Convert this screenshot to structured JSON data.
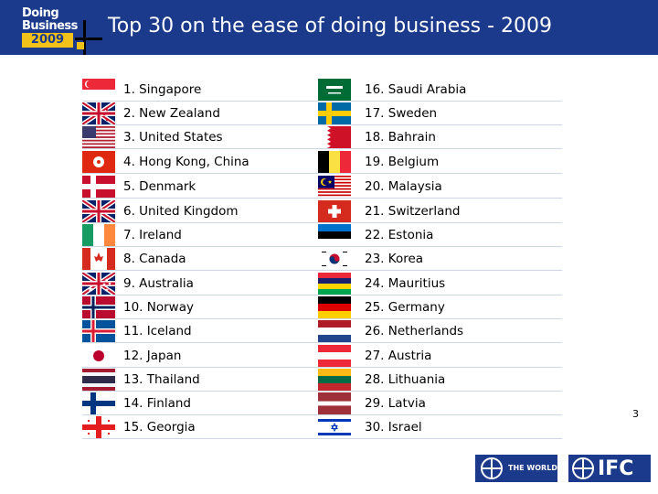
{
  "logo": {
    "line1": "Doing",
    "line2": "Business",
    "year": "2009"
  },
  "title": "Top 30 on the ease of doing business - 2009",
  "page_number": "3",
  "footer": {
    "world_bank_label": "THE WORLD BANK",
    "ifc_label": "IFC"
  },
  "rankings": [
    {
      "label": "1. Singapore",
      "flag": "singapore-flag"
    },
    {
      "label": "2. New Zealand",
      "flag": "new-zealand-flag"
    },
    {
      "label": "3. United States",
      "flag": "united-states-flag"
    },
    {
      "label": "4. Hong Kong, China",
      "flag": "hong-kong-flag"
    },
    {
      "label": "5. Denmark",
      "flag": "denmark-flag"
    },
    {
      "label": "6. United Kingdom",
      "flag": "united-kingdom-flag"
    },
    {
      "label": "7. Ireland",
      "flag": "ireland-flag"
    },
    {
      "label": "8. Canada",
      "flag": "canada-flag"
    },
    {
      "label": "9. Australia",
      "flag": "australia-flag"
    },
    {
      "label": "10. Norway",
      "flag": "norway-flag"
    },
    {
      "label": "11. Iceland",
      "flag": "iceland-flag"
    },
    {
      "label": "12. Japan",
      "flag": "japan-flag"
    },
    {
      "label": "13. Thailand",
      "flag": "thailand-flag"
    },
    {
      "label": "14. Finland",
      "flag": "finland-flag"
    },
    {
      "label": "15. Georgia",
      "flag": "georgia-flag"
    },
    {
      "label": "16. Saudi Arabia",
      "flag": "saudi-arabia-flag"
    },
    {
      "label": "17. Sweden",
      "flag": "sweden-flag"
    },
    {
      "label": "18. Bahrain",
      "flag": "bahrain-flag"
    },
    {
      "label": "19. Belgium",
      "flag": "belgium-flag"
    },
    {
      "label": "20. Malaysia",
      "flag": "malaysia-flag"
    },
    {
      "label": "21. Switzerland",
      "flag": "switzerland-flag"
    },
    {
      "label": "22. Estonia",
      "flag": "estonia-flag"
    },
    {
      "label": "23. Korea",
      "flag": "korea-flag"
    },
    {
      "label": "24. Mauritius",
      "flag": "mauritius-flag"
    },
    {
      "label": "25. Germany",
      "flag": "germany-flag"
    },
    {
      "label": "26. Netherlands",
      "flag": "netherlands-flag"
    },
    {
      "label": "27. Austria",
      "flag": "austria-flag"
    },
    {
      "label": "28. Lithuania",
      "flag": "lithuania-flag"
    },
    {
      "label": "29. Latvia",
      "flag": "latvia-flag"
    },
    {
      "label": "30. Israel",
      "flag": "israel-flag"
    }
  ],
  "colors": {
    "header": "#1b3a8c",
    "logo_accent": "#f2c21b"
  }
}
